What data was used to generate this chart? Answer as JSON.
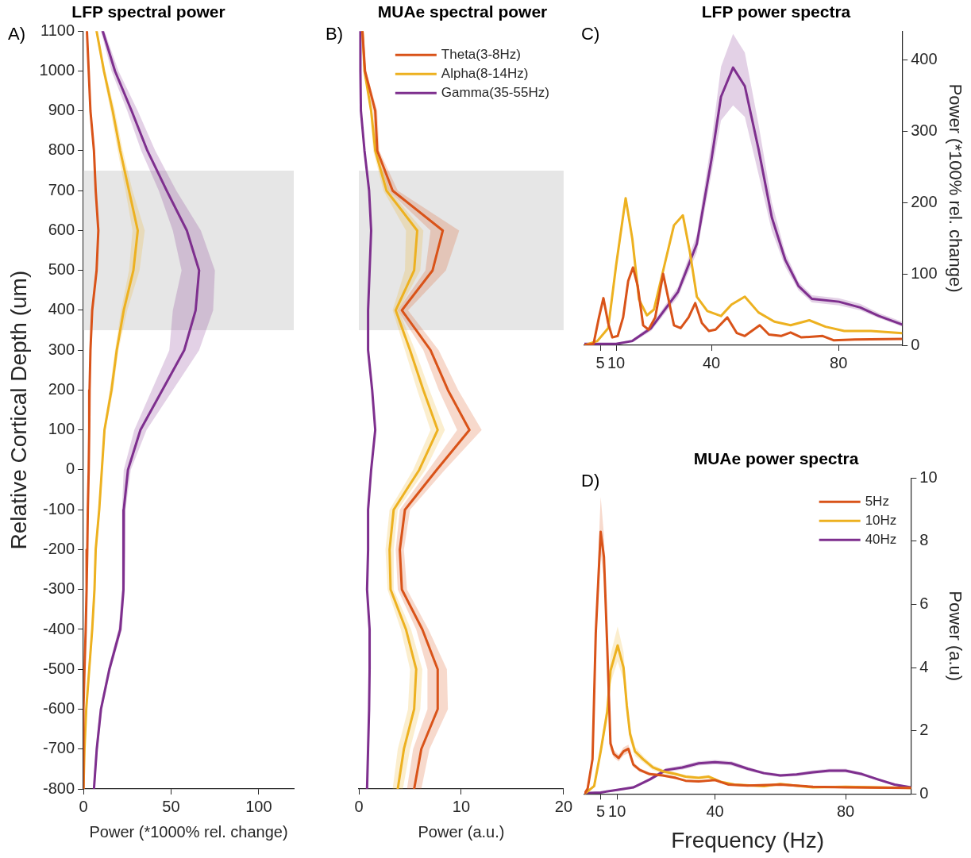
{
  "chart_data": [
    {
      "type": "line",
      "orientation": "horizontal",
      "title": "LFP spectral power",
      "xlabel": "Power (*1000% rel. change)",
      "ylabel": "Relative Cortical Depth (um)",
      "annotations": [
        "A)"
      ],
      "marker": "none",
      "legend": false,
      "x": [
        1100,
        1000,
        900,
        800,
        700,
        600,
        500,
        400,
        300,
        200,
        100,
        0,
        -100,
        -200,
        -300,
        -400,
        -500,
        -600,
        -700,
        -800
      ],
      "xlim": [
        0,
        120
      ],
      "xticks": [
        0,
        50,
        100
      ],
      "ylim": [
        -800,
        1100
      ],
      "yticks": [
        -800,
        -700,
        -600,
        -500,
        -400,
        -300,
        -200,
        -100,
        0,
        100,
        200,
        300,
        400,
        500,
        600,
        700,
        800,
        900,
        1000,
        1100
      ],
      "bands": [
        {
          "axis": "y",
          "from": 350,
          "to": 750,
          "color": "#e6e6e6"
        }
      ],
      "series": [
        {
          "color": "#d95319",
          "values": [
            2,
            3,
            4,
            6,
            7,
            8.5,
            7.5,
            5,
            4,
            3.5,
            3.3,
            3,
            2.5,
            2.2,
            1.8,
            1.3,
            0.6,
            0,
            0,
            0
          ]
        },
        {
          "color": "#edb120",
          "values": [
            7.5,
            11.7,
            16.7,
            21,
            26,
            31,
            28.5,
            23,
            19,
            16,
            12,
            10.5,
            9,
            7,
            6.3,
            5,
            3.3,
            1.6,
            0.6,
            0
          ],
          "lower": [
            7,
            11,
            15.5,
            19.5,
            24,
            28,
            26,
            21.5,
            18,
            15,
            11.5,
            10,
            8.5,
            6.5,
            5.8,
            4.5,
            2.8,
            1.2,
            0.3,
            0
          ],
          "upper": [
            8,
            12.5,
            18,
            22.5,
            28,
            35,
            32,
            25,
            20,
            17,
            12.5,
            11,
            9.5,
            7.5,
            6.8,
            5.5,
            3.8,
            2,
            0.9,
            0.3
          ]
        },
        {
          "color": "#7e2f8e",
          "values": [
            11,
            18,
            27.5,
            36.5,
            47.5,
            59,
            66,
            64,
            57.5,
            45,
            32.5,
            25.4,
            23,
            23,
            22.7,
            21,
            14.8,
            10,
            7.6,
            6
          ],
          "lower": [
            10,
            16,
            25,
            33,
            43,
            51,
            56,
            51,
            49,
            39,
            29,
            23,
            22,
            22,
            22,
            20,
            14,
            9.3,
            7,
            5.5
          ],
          "upper": [
            12,
            20,
            31,
            41,
            53,
            67,
            75,
            74,
            66,
            51,
            36,
            27,
            24,
            24,
            23.5,
            22,
            15.6,
            10.7,
            8.2,
            6.5
          ]
        }
      ]
    },
    {
      "type": "line",
      "orientation": "horizontal",
      "title": "MUAe spectral power",
      "xlabel": "Power (a.u.)",
      "annotations": [
        "B)"
      ],
      "marker": "none",
      "legend": "top right",
      "tick_labels": "x",
      "x": [
        1100,
        1000,
        900,
        800,
        700,
        600,
        500,
        400,
        300,
        200,
        100,
        0,
        -100,
        -200,
        -300,
        -400,
        -500,
        -600,
        -700,
        -800
      ],
      "xlim": [
        0,
        20
      ],
      "xticks": [
        0,
        10,
        20
      ],
      "ylim": [
        -800,
        1100
      ],
      "yticks": [
        -800,
        -700,
        -600,
        -500,
        -400,
        -300,
        -200,
        -100,
        0,
        100,
        200,
        300,
        400,
        500,
        600,
        700,
        800,
        900,
        1000,
        1100
      ],
      "bands": [
        {
          "axis": "y",
          "from": 350,
          "to": 750,
          "color": "#e6e6e6"
        }
      ],
      "series": [
        {
          "name": "Theta(3-8Hz)",
          "color": "#d95319",
          "values": [
            0.35,
            0.6,
            1.6,
            1.8,
            3.3,
            8.2,
            7.2,
            4.2,
            7.0,
            8.7,
            10.8,
            7.6,
            4.5,
            4.0,
            4.2,
            6.2,
            7.7,
            7.7,
            6.1,
            5.4
          ],
          "lower": [
            0.3,
            0.5,
            1.4,
            1.6,
            2.9,
            7,
            6.5,
            3.8,
            6.3,
            7.8,
            9.6,
            6.8,
            4,
            3.6,
            3.8,
            5.6,
            6.7,
            6.7,
            5.3,
            4.7
          ],
          "upper": [
            0.4,
            0.7,
            1.8,
            2,
            3.8,
            9.8,
            8.5,
            4.8,
            7.8,
            9.7,
            12,
            8.4,
            5,
            4.4,
            4.7,
            6.8,
            8.6,
            8.7,
            6.9,
            6.1
          ]
        },
        {
          "name": "Alpha(8-14Hz)",
          "color": "#edb120",
          "values": [
            0.35,
            0.55,
            1.2,
            1.6,
            2.7,
            5.7,
            5.4,
            3.6,
            5.0,
            6.3,
            7.7,
            5.9,
            3.4,
            3.0,
            3.1,
            4.6,
            5.6,
            5.4,
            4.4,
            3.8
          ],
          "lower": [
            0.3,
            0.5,
            1.1,
            1.4,
            2.4,
            4.6,
            4.5,
            3.3,
            4.5,
            5.7,
            7,
            5.3,
            3,
            2.6,
            2.8,
            4.1,
            5,
            4.8,
            3.8,
            3.3
          ],
          "upper": [
            0.4,
            0.6,
            1.3,
            1.8,
            3,
            6.3,
            6,
            3.9,
            5.5,
            6.9,
            8.4,
            6.5,
            3.8,
            3.4,
            3.4,
            5.1,
            6.2,
            6,
            5,
            4.3
          ]
        },
        {
          "name": "Gamma(35-55Hz)",
          "color": "#7e2f8e",
          "values": [
            0.15,
            0.15,
            0.2,
            0.55,
            1.0,
            1.2,
            1.05,
            0.9,
            0.9,
            1.3,
            1.6,
            1.2,
            0.9,
            0.9,
            0.8,
            1.05,
            1.05,
            1.0,
            0.9,
            0.8
          ]
        }
      ]
    },
    {
      "type": "line",
      "title": "LFP power spectra",
      "y2label": "Power (*100% rel. change)",
      "annotations": [
        "C)"
      ],
      "marker": "none",
      "legend": false,
      "xlim": [
        0,
        100
      ],
      "xticks": [
        5,
        10,
        40,
        80
      ],
      "y2lim": [
        0,
        440
      ],
      "y2ticks": [
        0,
        100,
        200,
        300,
        400
      ],
      "series": [
        {
          "axis": "y2",
          "color": "#d95319",
          "x": [
            0,
            2.9,
            4.6,
            6,
            7.5,
            8.8,
            10.5,
            12.2,
            13.8,
            15.3,
            16.8,
            18.5,
            20.2,
            22.3,
            24.8,
            26.5,
            28.2,
            30.3,
            32.8,
            34.9,
            37,
            39.2,
            41.3,
            45,
            48,
            50.5,
            55.2,
            58.1,
            61.9,
            64.9,
            68.3,
            75,
            78.4,
            85.1,
            100
          ],
          "values": [
            0,
            2,
            39,
            66,
            31,
            11,
            13,
            39,
            90,
            109,
            83,
            28,
            22,
            39,
            100,
            64,
            28,
            24,
            39,
            59,
            31,
            20,
            22,
            39,
            17,
            13,
            28,
            15,
            13,
            18,
            11,
            13,
            7,
            8,
            9
          ]
        },
        {
          "axis": "y2",
          "color": "#edb120",
          "x": [
            0,
            4.1,
            7.5,
            10,
            13,
            15.1,
            17.2,
            19.7,
            21.9,
            25.2,
            28.2,
            31,
            33.2,
            35.4,
            38.7,
            43,
            46.3,
            50.5,
            54.8,
            59.8,
            64.9,
            70.8,
            75.9,
            81.8,
            90.2,
            100
          ],
          "values": [
            0,
            6,
            24,
            112,
            206,
            149,
            64,
            42,
            50,
            112,
            168,
            182,
            131,
            68,
            48,
            41,
            57,
            68,
            46,
            33,
            28,
            35,
            26,
            20,
            20,
            17
          ]
        },
        {
          "axis": "y2",
          "color": "#7e2f8e",
          "x": [
            0,
            10,
            15.1,
            21,
            29.5,
            35.4,
            40,
            43,
            46.8,
            50.5,
            54.8,
            59,
            63.2,
            67.4,
            71.6,
            80.1,
            86.8,
            92.7,
            100
          ],
          "values": [
            2,
            2,
            6,
            24,
            75,
            142,
            260,
            348,
            389,
            363,
            275,
            179,
            120,
            83,
            65,
            61,
            53,
            41,
            29
          ],
          "lower": [
            1,
            1,
            4,
            20,
            68,
            130,
            240,
            315,
            336,
            320,
            240,
            160,
            110,
            77,
            60,
            56,
            49,
            38,
            26
          ],
          "upper": [
            3,
            3,
            8,
            28,
            82,
            155,
            285,
            390,
            436,
            410,
            310,
            200,
            130,
            89,
            70,
            66,
            58,
            45,
            33
          ]
        }
      ]
    },
    {
      "type": "line",
      "title": "MUAe power spectra",
      "xlabel": "Frequency (Hz)",
      "y2label": "Power (a.u)",
      "annotations": [
        "D)"
      ],
      "marker": "none",
      "legend": "top right",
      "xlim": [
        0,
        100
      ],
      "xticks": [
        5,
        10,
        40,
        80
      ],
      "y2lim": [
        0,
        10
      ],
      "y2ticks": [
        0,
        2,
        4,
        6,
        8,
        10
      ],
      "series": [
        {
          "name": "5Hz",
          "axis": "y2",
          "color": "#d95319",
          "x": [
            0,
            1,
            2.5,
            3.5,
            5,
            6,
            7,
            8,
            9,
            10.5,
            12,
            13.5,
            15,
            17,
            20,
            24,
            28,
            31,
            35,
            40,
            44,
            50,
            60,
            70,
            80,
            100
          ],
          "values": [
            0,
            0.17,
            1.1,
            5.1,
            8.3,
            7.5,
            4.7,
            1.6,
            1.27,
            1.14,
            1.35,
            1.43,
            0.93,
            0.76,
            0.63,
            0.59,
            0.51,
            0.42,
            0.4,
            0.44,
            0.3,
            0.27,
            0.3,
            0.23,
            0.21,
            0.19
          ],
          "lower": [
            0,
            0.15,
            1,
            4.6,
            7.6,
            6.8,
            4.2,
            1.4,
            1.15,
            1.03,
            1.22,
            1.3,
            0.85,
            0.7,
            0.58,
            0.55,
            0.47,
            0.39,
            0.37,
            0.41,
            0.28,
            0.25,
            0.28,
            0.21,
            0.19,
            0.17
          ],
          "upper": [
            0,
            0.19,
            1.2,
            5.6,
            9.4,
            8.2,
            5.2,
            1.8,
            1.39,
            1.25,
            1.48,
            1.56,
            1.01,
            0.82,
            0.68,
            0.63,
            0.55,
            0.45,
            0.43,
            0.47,
            0.32,
            0.29,
            0.32,
            0.25,
            0.23,
            0.21
          ]
        },
        {
          "name": "10Hz",
          "axis": "y2",
          "color": "#edb120",
          "x": [
            0,
            3,
            5,
            7,
            8,
            10.2,
            12,
            13,
            14,
            15.5,
            18,
            21,
            24,
            28,
            31,
            35,
            38,
            42,
            46,
            55,
            60,
            70,
            80,
            100
          ],
          "values": [
            0,
            0.25,
            1.35,
            2.6,
            3.9,
            4.7,
            4.0,
            2.8,
            1.9,
            1.35,
            1.1,
            0.84,
            0.72,
            0.63,
            0.55,
            0.51,
            0.55,
            0.38,
            0.3,
            0.25,
            0.32,
            0.21,
            0.23,
            0.19
          ],
          "lower": [
            0,
            0.22,
            1.2,
            2.3,
            3.5,
            4.2,
            3.6,
            2.5,
            1.7,
            1.2,
            1,
            0.76,
            0.65,
            0.57,
            0.5,
            0.46,
            0.5,
            0.34,
            0.27,
            0.22,
            0.29,
            0.19,
            0.21,
            0.17
          ],
          "upper": [
            0,
            0.28,
            1.5,
            2.9,
            4.4,
            5.3,
            4.5,
            3.1,
            2.1,
            1.5,
            1.2,
            0.92,
            0.79,
            0.69,
            0.6,
            0.56,
            0.6,
            0.42,
            0.33,
            0.28,
            0.35,
            0.23,
            0.25,
            0.21
          ]
        },
        {
          "name": "40Hz",
          "axis": "y2",
          "color": "#7e2f8e",
          "x": [
            0,
            5,
            10,
            15,
            20,
            25,
            30,
            35,
            40,
            45,
            50,
            55,
            60,
            65,
            70,
            75,
            80,
            85,
            90,
            95,
            100
          ],
          "values": [
            0.03,
            0.05,
            0.13,
            0.21,
            0.46,
            0.76,
            0.84,
            0.97,
            1.01,
            0.97,
            0.8,
            0.66,
            0.59,
            0.62,
            0.69,
            0.74,
            0.74,
            0.63,
            0.46,
            0.3,
            0.21
          ],
          "lower": [
            0.01,
            0.03,
            0.1,
            0.17,
            0.41,
            0.7,
            0.77,
            0.9,
            0.94,
            0.9,
            0.74,
            0.61,
            0.54,
            0.57,
            0.63,
            0.68,
            0.68,
            0.58,
            0.42,
            0.27,
            0.18
          ],
          "upper": [
            0.05,
            0.07,
            0.16,
            0.25,
            0.51,
            0.82,
            0.91,
            1.04,
            1.08,
            1.04,
            0.86,
            0.71,
            0.64,
            0.67,
            0.75,
            0.8,
            0.8,
            0.68,
            0.5,
            0.33,
            0.24
          ]
        }
      ]
    }
  ]
}
